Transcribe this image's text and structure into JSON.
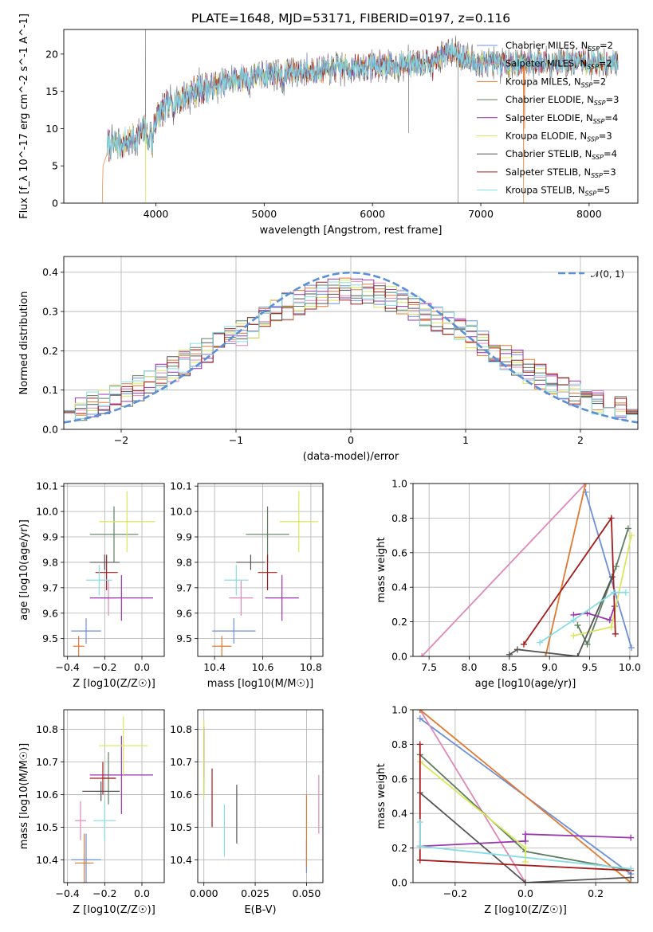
{
  "title": "PLATE=1648, MJD=53171, FIBERID=0197, z=0.116",
  "models": [
    {
      "name": "Chabrier MILES",
      "nssp": "2",
      "color": "#6c8fd9"
    },
    {
      "name": "Salpeter MILES",
      "nssp": "2",
      "color": "#e088bb"
    },
    {
      "name": "Kroupa MILES",
      "nssp": "2",
      "color": "#e07a30"
    },
    {
      "name": "Chabrier ELODIE",
      "nssp": "3",
      "color": "#5e7e60"
    },
    {
      "name": "Salpeter ELODIE",
      "nssp": "4",
      "color": "#9a35b0"
    },
    {
      "name": "Kroupa ELODIE",
      "nssp": "3",
      "color": "#d9e85a"
    },
    {
      "name": "Chabrier STELIB",
      "nssp": "4",
      "color": "#555555"
    },
    {
      "name": "Salpeter STELIB",
      "nssp": "3",
      "color": "#a51c1c"
    },
    {
      "name": "Kroupa STELIB",
      "nssp": "5",
      "color": "#86dde4"
    }
  ],
  "chart_data": [
    {
      "type": "line",
      "subject": "spectrum",
      "xlabel": "wavelength [Angstrom, rest frame]",
      "ylabel": "Flux [f_λ 10^-17 erg cm^-2 s^-1 A^-1]",
      "xlim": [
        3150,
        8450
      ],
      "ylim": [
        0,
        23.3
      ],
      "xticks": [
        4000,
        5000,
        6000,
        7000,
        8000
      ],
      "yticks": [
        0,
        5,
        10,
        15,
        20
      ],
      "grid": false,
      "legend": "right",
      "continuum_x": [
        3550,
        3700,
        3850,
        3950,
        4050,
        4200,
        4400,
        4600,
        4800,
        5000,
        5200,
        5400,
        5600,
        5800,
        6000,
        6200,
        6400,
        6600,
        6750,
        6900,
        7100,
        7300,
        7500,
        7700,
        7900,
        8100,
        8250
      ],
      "continuum_y": [
        7.8,
        8.0,
        9.0,
        10.4,
        12.3,
        13.8,
        15.2,
        16.0,
        16.8,
        17.3,
        17.5,
        17.8,
        18.0,
        18.2,
        18.4,
        18.5,
        18.8,
        19.5,
        20.5,
        19.0,
        18.6,
        18.8,
        18.9,
        19.0,
        19.0,
        18.8,
        18.8
      ]
    },
    {
      "type": "histogram",
      "subject": "residuals",
      "xlabel": "(data-model)/error",
      "ylabel": "Normed distribution",
      "xlim": [
        -2.5,
        2.5
      ],
      "ylim": [
        0,
        0.44
      ],
      "xticks": [
        -2,
        -1,
        0,
        1,
        2
      ],
      "yticks": [
        0.0,
        0.1,
        0.2,
        0.3,
        0.4
      ],
      "grid": true,
      "legend": "top-right",
      "reference": "N(0,1)",
      "reference_label": "𝒩(0, 1)",
      "bin_width": 0.1,
      "bin_range": [
        -2.5,
        2.5
      ]
    },
    {
      "type": "scatter",
      "subject": "age vs metallicity",
      "xlabel": "Z [log10(Z/Z☉)]",
      "ylabel": "age [log10(age/yr)]",
      "xlim": [
        -0.42,
        0.12
      ],
      "ylim": [
        9.43,
        10.11
      ],
      "xticks": [
        -0.4,
        -0.2,
        0.0
      ],
      "yticks": [
        9.5,
        9.6,
        9.7,
        9.8,
        9.9,
        10.0,
        10.1
      ],
      "grid": true,
      "points": [
        {
          "model": 0,
          "x": -0.3,
          "xerr": 0.08,
          "y": 9.53,
          "yerr": 0.05
        },
        {
          "model": 1,
          "x": -0.18,
          "xerr": 0.04,
          "y": 9.66,
          "yerr": 0.07
        },
        {
          "model": 2,
          "x": -0.34,
          "xerr": 0.03,
          "y": 9.47,
          "yerr": 0.04
        },
        {
          "model": 3,
          "x": -0.15,
          "xerr": 0.13,
          "y": 9.91,
          "yerr": 0.11
        },
        {
          "model": 4,
          "x": -0.11,
          "xerr": 0.17,
          "y": 9.66,
          "yerr": 0.09
        },
        {
          "model": 5,
          "x": -0.08,
          "xerr": 0.15,
          "y": 9.96,
          "yerr": 0.12
        },
        {
          "model": 6,
          "x": -0.2,
          "xerr": 0.08,
          "y": 9.8,
          "yerr": 0.03
        },
        {
          "model": 7,
          "x": -0.19,
          "xerr": 0.06,
          "y": 9.76,
          "yerr": 0.07
        },
        {
          "model": 8,
          "x": -0.23,
          "xerr": 0.07,
          "y": 9.73,
          "yerr": 0.06
        }
      ]
    },
    {
      "type": "scatter",
      "subject": "age vs mass",
      "xlabel": "mass [log10(M/M☉)]",
      "ylabel": "",
      "xlim": [
        10.33,
        10.85
      ],
      "ylim": [
        9.43,
        10.11
      ],
      "xticks": [
        10.4,
        10.6,
        10.8
      ],
      "yticks": [
        9.5,
        9.6,
        9.7,
        9.8,
        9.9,
        10.0,
        10.1
      ],
      "grid": true,
      "points": [
        {
          "model": 0,
          "x": 10.48,
          "xerr": 0.09,
          "y": 9.53,
          "yerr": 0.05
        },
        {
          "model": 1,
          "x": 10.51,
          "xerr": 0.05,
          "y": 9.66,
          "yerr": 0.07
        },
        {
          "model": 2,
          "x": 10.43,
          "xerr": 0.04,
          "y": 9.47,
          "yerr": 0.04
        },
        {
          "model": 3,
          "x": 10.62,
          "xerr": 0.09,
          "y": 9.91,
          "yerr": 0.11
        },
        {
          "model": 4,
          "x": 10.68,
          "xerr": 0.07,
          "y": 9.66,
          "yerr": 0.09
        },
        {
          "model": 5,
          "x": 10.75,
          "xerr": 0.08,
          "y": 9.96,
          "yerr": 0.12
        },
        {
          "model": 6,
          "x": 10.55,
          "xerr": 0.06,
          "y": 9.8,
          "yerr": 0.03
        },
        {
          "model": 7,
          "x": 10.62,
          "xerr": 0.04,
          "y": 9.76,
          "yerr": 0.07
        },
        {
          "model": 8,
          "x": 10.49,
          "xerr": 0.05,
          "y": 9.73,
          "yerr": 0.06
        }
      ]
    },
    {
      "type": "line",
      "subject": "mass weight vs age",
      "xlabel": "age [log10(age/yr)]",
      "ylabel": "mass weight",
      "xlim": [
        7.3,
        10.1
      ],
      "ylim": [
        0,
        1
      ],
      "xticks": [
        7.5,
        8.0,
        8.5,
        9.0,
        9.5,
        10.0
      ],
      "yticks": [
        0.0,
        0.2,
        0.4,
        0.6,
        0.8,
        1.0
      ],
      "grid": true,
      "series": [
        {
          "model": 0,
          "x": [
            9.45,
            10.02
          ],
          "y": [
            0.95,
            0.05
          ]
        },
        {
          "model": 1,
          "x": [
            7.41,
            9.45
          ],
          "y": [
            0.0,
            1.0
          ]
        },
        {
          "model": 2,
          "x": [
            8.95,
            9.45
          ],
          "y": [
            0.0,
            1.0
          ]
        },
        {
          "model": 3,
          "x": [
            9.35,
            9.47,
            9.83,
            9.98
          ],
          "y": [
            0.18,
            0.07,
            0.52,
            0.74
          ]
        },
        {
          "model": 4,
          "x": [
            9.3,
            9.47,
            9.75,
            9.81
          ],
          "y": [
            0.24,
            0.25,
            0.21,
            0.29
          ]
        },
        {
          "model": 5,
          "x": [
            9.3,
            9.77,
            10.02
          ],
          "y": [
            0.12,
            0.17,
            0.7
          ]
        },
        {
          "model": 6,
          "x": [
            8.5,
            8.6,
            9.35,
            9.78
          ],
          "y": [
            0.01,
            0.04,
            0.0,
            0.46
          ]
        },
        {
          "model": 7,
          "x": [
            8.68,
            9.77,
            9.82
          ],
          "y": [
            0.07,
            0.8,
            0.13
          ]
        },
        {
          "model": 8,
          "x": [
            8.88,
            9.3,
            9.8,
            9.95
          ],
          "y": [
            0.08,
            0.21,
            0.37,
            0.37
          ]
        }
      ]
    },
    {
      "type": "scatter",
      "subject": "mass vs metallicity",
      "xlabel": "Z [log10(Z/Z☉)]",
      "ylabel": "mass [log10(M/M☉)]",
      "xlim": [
        -0.42,
        0.12
      ],
      "ylim": [
        10.33,
        10.86
      ],
      "xticks": [
        -0.4,
        -0.2,
        0.0
      ],
      "yticks": [
        10.4,
        10.5,
        10.6,
        10.7,
        10.8
      ],
      "grid": true,
      "points": [
        {
          "model": 0,
          "x": -0.3,
          "xerr": 0.08,
          "y": 10.4,
          "yerr": 0.08
        },
        {
          "model": 1,
          "x": -0.33,
          "xerr": 0.03,
          "y": 10.52,
          "yerr": 0.06
        },
        {
          "model": 2,
          "x": -0.31,
          "xerr": 0.05,
          "y": 10.39,
          "yerr": 0.09
        },
        {
          "model": 3,
          "x": -0.18,
          "xerr": 0.04,
          "y": 10.65,
          "yerr": 0.08
        },
        {
          "model": 4,
          "x": -0.11,
          "xerr": 0.17,
          "y": 10.66,
          "yerr": 0.12
        },
        {
          "model": 5,
          "x": -0.1,
          "xerr": 0.13,
          "y": 10.75,
          "yerr": 0.09
        },
        {
          "model": 6,
          "x": -0.22,
          "xerr": 0.1,
          "y": 10.61,
          "yerr": 0.03
        },
        {
          "model": 7,
          "x": -0.21,
          "xerr": 0.07,
          "y": 10.65,
          "yerr": 0.05
        },
        {
          "model": 8,
          "x": -0.2,
          "xerr": 0.06,
          "y": 10.52,
          "yerr": 0.06
        }
      ]
    },
    {
      "type": "errorbar",
      "subject": "mass vs extinction",
      "xlabel": "E(B-V)",
      "ylabel": "",
      "xlim": [
        -0.003,
        0.058
      ],
      "ylim": [
        10.33,
        10.86
      ],
      "xticks": [
        0.0,
        0.025,
        0.05
      ],
      "xticklabels": [
        "0.000",
        "0.025",
        "0.050"
      ],
      "yticks": [
        10.4,
        10.5,
        10.6,
        10.7,
        10.8
      ],
      "grid": true,
      "points": [
        {
          "model": 0,
          "x": 0.05,
          "y": 10.41,
          "yerr": 0.05
        },
        {
          "model": 1,
          "x": 0.056,
          "y": 10.57,
          "yerr": 0.09
        },
        {
          "model": 2,
          "x": 0.05,
          "y": 10.49,
          "yerr": 0.11
        },
        {
          "model": 3,
          "x": 0.0,
          "y": 10.7,
          "yerr": 0.1
        },
        {
          "model": 4,
          "x": 0.0,
          "y": 10.73,
          "yerr": 0.08
        },
        {
          "model": 5,
          "x": 0.0,
          "y": 10.71,
          "yerr": 0.12
        },
        {
          "model": 6,
          "x": 0.016,
          "y": 10.54,
          "yerr": 0.09
        },
        {
          "model": 7,
          "x": 0.004,
          "y": 10.59,
          "yerr": 0.09
        },
        {
          "model": 8,
          "x": 0.01,
          "y": 10.49,
          "yerr": 0.08
        }
      ]
    },
    {
      "type": "line",
      "subject": "mass weight vs metallicity",
      "xlabel": "Z [log10(Z/Z☉)]",
      "ylabel": "mass weight",
      "xlim": [
        -0.32,
        0.32
      ],
      "ylim": [
        0,
        1
      ],
      "xticks": [
        -0.2,
        0.0,
        0.2
      ],
      "yticks": [
        0.0,
        0.2,
        0.4,
        0.6,
        0.8,
        1.0
      ],
      "grid": true,
      "series": [
        {
          "model": 0,
          "x": [
            -0.3,
            0.3
          ],
          "y": [
            0.95,
            0.05
          ]
        },
        {
          "model": 1,
          "x": [
            -0.3,
            0.0
          ],
          "y": [
            1.0,
            0.0
          ]
        },
        {
          "model": 2,
          "x": [
            -0.3,
            0.3
          ],
          "y": [
            1.0,
            0.0
          ]
        },
        {
          "model": 3,
          "x": [
            -0.3,
            0.0,
            0.3
          ],
          "y": [
            0.74,
            0.18,
            0.07
          ]
        },
        {
          "model": 4,
          "x": [
            -0.3,
            0.0,
            0.0,
            0.3
          ],
          "y": [
            0.21,
            0.24,
            0.28,
            0.26
          ]
        },
        {
          "model": 5,
          "x": [
            -0.3,
            0.0,
            0.0
          ],
          "y": [
            0.7,
            0.2,
            0.12
          ]
        },
        {
          "model": 6,
          "x": [
            -0.3,
            0.0,
            0.3
          ],
          "y": [
            0.52,
            0.0,
            0.03
          ]
        },
        {
          "model": 7,
          "x": [
            -0.3,
            -0.3,
            0.3
          ],
          "y": [
            0.8,
            0.13,
            0.07
          ]
        },
        {
          "model": 8,
          "x": [
            -0.3,
            -0.3,
            0.3
          ],
          "y": [
            0.35,
            0.21,
            0.08
          ]
        }
      ]
    }
  ]
}
